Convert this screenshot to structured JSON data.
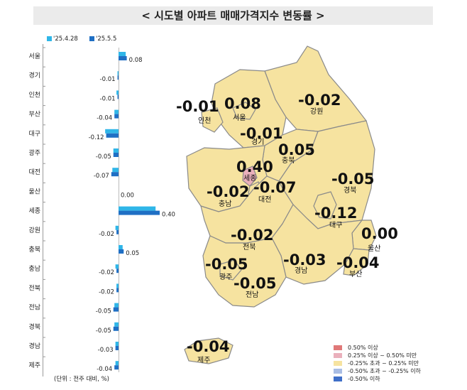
{
  "header": {
    "title": "< 시도별 아파트 매매가격지수 변동률 >"
  },
  "legend_top": [
    {
      "label": "'25.4.28",
      "color": "#2fb6e8"
    },
    {
      "label": "'25.5.5",
      "color": "#1f6fc4"
    }
  ],
  "unit_note": "(단위 : 전주 대비, %)",
  "chart_data": {
    "type": "bar",
    "orientation": "horizontal",
    "categories": [
      "서울",
      "경기",
      "인천",
      "부산",
      "대구",
      "광주",
      "대전",
      "울산",
      "세종",
      "강원",
      "충북",
      "충남",
      "전북",
      "전남",
      "경북",
      "경남",
      "제주"
    ],
    "series": [
      {
        "name": "'25.4.28",
        "color": "#2fb6e8",
        "values": [
          0.07,
          -0.01,
          -0.02,
          -0.04,
          -0.13,
          -0.05,
          -0.06,
          0.0,
          0.36,
          -0.03,
          0.04,
          -0.03,
          -0.02,
          -0.04,
          -0.04,
          -0.03,
          -0.03
        ]
      },
      {
        "name": "'25.5.5",
        "color": "#1f6fc4",
        "values": [
          0.08,
          -0.01,
          -0.01,
          -0.04,
          -0.12,
          -0.05,
          -0.07,
          0.0,
          0.4,
          -0.02,
          0.05,
          -0.02,
          -0.02,
          -0.05,
          -0.05,
          -0.03,
          -0.04
        ]
      }
    ],
    "value_labels": [
      "0.08",
      "-0.01",
      "-0.01",
      "-0.04",
      "-0.12",
      "-0.05",
      "-0.07",
      "0.00",
      "0.40",
      "-0.02",
      "0.05",
      "-0.02",
      "-0.02",
      "-0.05",
      "-0.05",
      "-0.03",
      "-0.04"
    ]
  },
  "map": {
    "regions": [
      {
        "id": "incheon",
        "name": "인천",
        "value": "-0.01",
        "fill": "#f6e3a0"
      },
      {
        "id": "seoul",
        "name": "서울",
        "value": "0.08",
        "fill": "#f6e3a0"
      },
      {
        "id": "gyeonggi",
        "name": "경기",
        "value": "-0.01",
        "fill": "#f6e3a0"
      },
      {
        "id": "gangwon",
        "name": "강원",
        "value": "-0.02",
        "fill": "#f6e3a0"
      },
      {
        "id": "chungbuk",
        "name": "충북",
        "value": "0.05",
        "fill": "#f6e3a0"
      },
      {
        "id": "sejong",
        "name": "세종",
        "value": "0.40",
        "fill": "#eab0bc"
      },
      {
        "id": "daejeon",
        "name": "대전",
        "value": "-0.07",
        "fill": "#f6e3a0"
      },
      {
        "id": "chungnam",
        "name": "충남",
        "value": "-0.02",
        "fill": "#f6e3a0"
      },
      {
        "id": "gyeongbuk",
        "name": "경북",
        "value": "-0.05",
        "fill": "#f6e3a0"
      },
      {
        "id": "daegu",
        "name": "대구",
        "value": "-0.12",
        "fill": "#f6e3a0"
      },
      {
        "id": "jeonbuk",
        "name": "전북",
        "value": "-0.02",
        "fill": "#f6e3a0"
      },
      {
        "id": "ulsan",
        "name": "울산",
        "value": "0.00",
        "fill": "#f6e3a0"
      },
      {
        "id": "gwangju",
        "name": "광주",
        "value": "-0.05",
        "fill": "#f6e3a0"
      },
      {
        "id": "jeonnam",
        "name": "전남",
        "value": "-0.05",
        "fill": "#f6e3a0"
      },
      {
        "id": "gyeongnam",
        "name": "경남",
        "value": "-0.03",
        "fill": "#f6e3a0"
      },
      {
        "id": "busan",
        "name": "부산",
        "value": "-0.04",
        "fill": "#f6e3a0"
      },
      {
        "id": "jeju",
        "name": "제주",
        "value": "-0.04",
        "fill": "#f6e3a0"
      }
    ]
  },
  "map_legend": [
    {
      "label": "0.50% 이상",
      "color": "#e07878"
    },
    {
      "label": "0.25% 이상 ~ 0.50% 미만",
      "color": "#eab0bc"
    },
    {
      "label": "-0.25% 초과 ~ 0.25% 미만",
      "color": "#f6e3a0"
    },
    {
      "label": "-0.50% 초과 ~ -0.25% 이하",
      "color": "#a9bde4"
    },
    {
      "label": "-0.50% 이하",
      "color": "#3f6fc8"
    }
  ]
}
